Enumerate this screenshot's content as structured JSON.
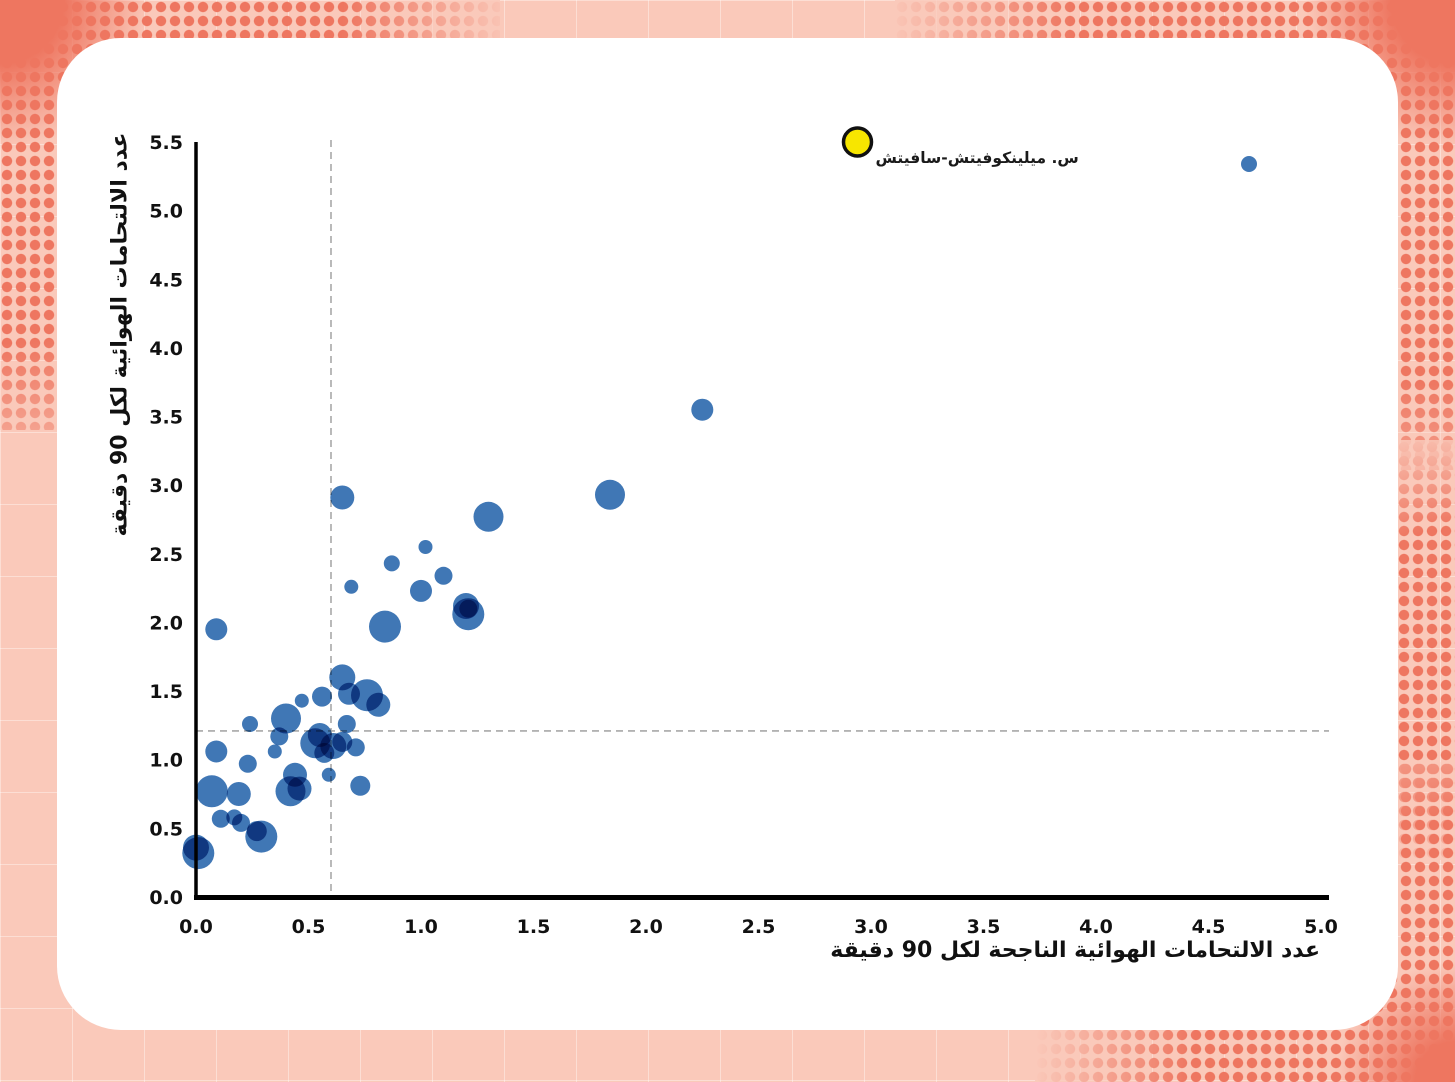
{
  "theme": {
    "background_color": "#fac9ba",
    "dot_color": "#ee7660",
    "card_color": "#ffffff"
  },
  "chart_data": {
    "type": "scatter",
    "title": "",
    "xlabel": "عدد الالتحامات الهوائية الناجحة لكل 90 دقيقة",
    "ylabel": "عدد الالتحامات الهوائية لكل 90 دقيقة",
    "xlim": [
      0,
      5.0
    ],
    "ylim": [
      0,
      5.5
    ],
    "x_ticks": [
      "0.0",
      "0.5",
      "1.0",
      "1.5",
      "2.0",
      "2.5",
      "3.0",
      "3.5",
      "4.0",
      "4.5",
      "5.0"
    ],
    "y_ticks": [
      "0.0",
      "0.5",
      "1.0",
      "1.5",
      "2.0",
      "2.5",
      "3.0",
      "3.5",
      "4.0",
      "4.5",
      "5.0",
      "5.5"
    ],
    "grid": false,
    "legend": "none",
    "reference_lines": {
      "x": 0.6,
      "y": 1.21,
      "style": "dashed",
      "color": "#a8a8a8"
    },
    "point_color": "#3a73b3",
    "points_format": "[successful_aerial_duels_per90, aerial_duels_per90, bubble_radius_px]",
    "points": [
      [
        4.68,
        5.34,
        8
      ],
      [
        2.25,
        3.55,
        11
      ],
      [
        1.84,
        2.93,
        15
      ],
      [
        1.3,
        2.77,
        15
      ],
      [
        0.65,
        2.91,
        12
      ],
      [
        1.02,
        2.55,
        7
      ],
      [
        0.87,
        2.43,
        8
      ],
      [
        1.1,
        2.34,
        9
      ],
      [
        0.69,
        2.26,
        7
      ],
      [
        1.0,
        2.23,
        11
      ],
      [
        1.21,
        2.06,
        16
      ],
      [
        1.2,
        2.12,
        13
      ],
      [
        1.21,
        2.1,
        9
      ],
      [
        0.84,
        1.97,
        16
      ],
      [
        0.09,
        1.95,
        11
      ],
      [
        0.65,
        1.6,
        13
      ],
      [
        0.76,
        1.47,
        16
      ],
      [
        0.68,
        1.48,
        11
      ],
      [
        0.56,
        1.46,
        10
      ],
      [
        0.47,
        1.43,
        7
      ],
      [
        0.81,
        1.4,
        12
      ],
      [
        0.4,
        1.3,
        15
      ],
      [
        0.67,
        1.26,
        9
      ],
      [
        0.24,
        1.26,
        8
      ],
      [
        0.37,
        1.17,
        9
      ],
      [
        0.53,
        1.12,
        15
      ],
      [
        0.55,
        1.18,
        12
      ],
      [
        0.61,
        1.1,
        13
      ],
      [
        0.57,
        1.05,
        10
      ],
      [
        0.65,
        1.13,
        10
      ],
      [
        0.71,
        1.09,
        9
      ],
      [
        0.35,
        1.06,
        7
      ],
      [
        0.09,
        1.06,
        11
      ],
      [
        0.23,
        0.97,
        9
      ],
      [
        0.59,
        0.89,
        7
      ],
      [
        0.44,
        0.89,
        12
      ],
      [
        0.46,
        0.79,
        12
      ],
      [
        0.42,
        0.77,
        15
      ],
      [
        0.73,
        0.81,
        10
      ],
      [
        0.07,
        0.77,
        16
      ],
      [
        0.19,
        0.75,
        12
      ],
      [
        0.17,
        0.58,
        8
      ],
      [
        0.11,
        0.57,
        9
      ],
      [
        0.2,
        0.54,
        9
      ],
      [
        0.27,
        0.48,
        10
      ],
      [
        0.29,
        0.44,
        16
      ],
      [
        0.0,
        0.36,
        13
      ],
      [
        0.01,
        0.32,
        16
      ]
    ],
    "highlight": {
      "label": "س. ميلينكوفيتش-سافيتش",
      "x": 2.94,
      "y": 5.5,
      "r": 14,
      "color": "#f7e600",
      "stroke": "#111111"
    }
  }
}
